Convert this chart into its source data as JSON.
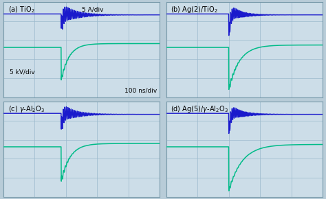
{
  "panels": [
    {
      "label": "(a) TiO$_2$",
      "show_annotations": true
    },
    {
      "label": "(b) Ag(2)/TiO$_2$",
      "show_annotations": false
    },
    {
      "label": "(c) $\\gamma$-Al$_2$O$_3$",
      "show_annotations": false
    },
    {
      "label": "(d) Ag(5)/$\\gamma$-Al$_2$O$_3$",
      "show_annotations": false
    }
  ],
  "bg_color": "#b8ccd8",
  "grid_color": "#9ab8cc",
  "blue_color": "#1a1acc",
  "green_color": "#00bb88",
  "panel_bg": "#ccdde8",
  "ann_a_div": "5 A/div",
  "ann_kv_div": "5 kV/div",
  "ann_ns_div": "100 ns/div"
}
